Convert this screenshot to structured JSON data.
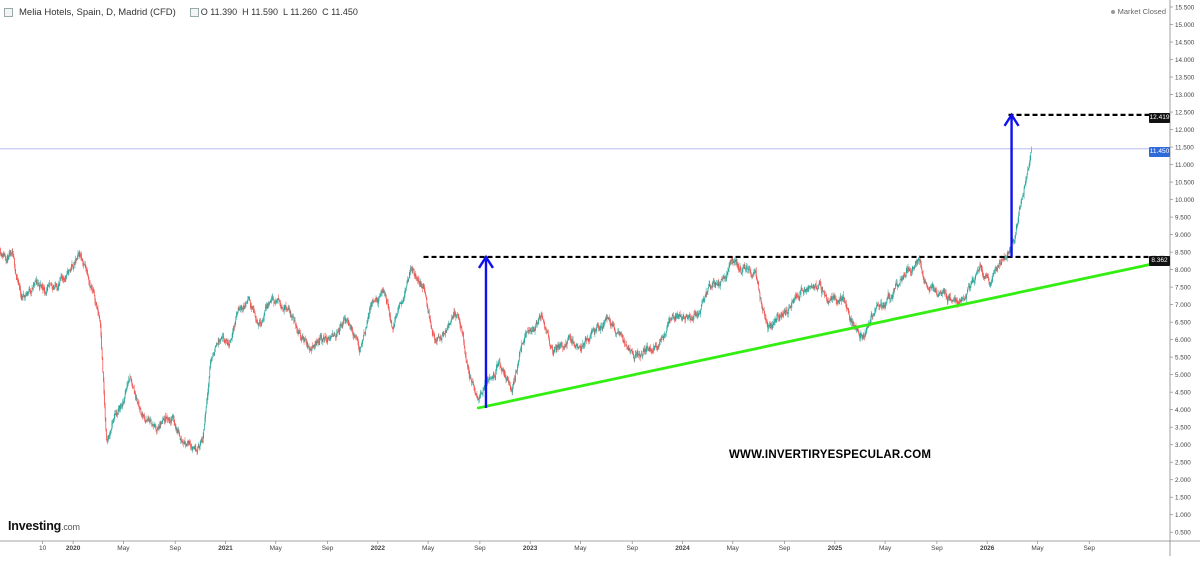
{
  "header": {
    "title": "Melia Hotels, Spain, D, Madrid (CFD)",
    "open": "O 11.390",
    "high": "H 11.590",
    "low": "L 11.260",
    "close": "C 11.450"
  },
  "status": "Market Closed",
  "logo": {
    "brand": "Investing",
    "suffix": ".com"
  },
  "watermark": "WWW.INVERTIRYESPECULAR.COM",
  "price_tags": {
    "target": "12.419",
    "current": "11.450",
    "breakout": "8.362"
  },
  "colors": {
    "up": "#26a69a",
    "down": "#ef5350",
    "trend": "#33ee11",
    "arrow": "#1010ee",
    "resistance": "#000000",
    "current_line": "#aab4f0"
  },
  "chart_data": {
    "type": "candlestick",
    "title": "Melia Hotels, Spain, D, Madrid (CFD)",
    "y_ticks": [
      "0.500",
      "1.000",
      "1.500",
      "2.000",
      "2.500",
      "3.000",
      "3.500",
      "4.000",
      "4.500",
      "5.000",
      "5.500",
      "6.000",
      "6.500",
      "7.000",
      "7.500",
      "8.000",
      "8.500",
      "9.000",
      "9.500",
      "10.000",
      "10.500",
      "11.000",
      "11.500",
      "12.000",
      "12.500",
      "13.000",
      "13.500",
      "14.000",
      "14.500",
      "15.000",
      "15.500"
    ],
    "ylim": [
      0.25,
      15.7
    ],
    "x_ticks": [
      {
        "label": "10",
        "date": "2019.8"
      },
      {
        "label": "2020",
        "date": "2020.0"
      },
      {
        "label": "May",
        "date": "2020.33"
      },
      {
        "label": "Sep",
        "date": "2020.67"
      },
      {
        "label": "2021",
        "date": "2021.0"
      },
      {
        "label": "May",
        "date": "2021.33"
      },
      {
        "label": "Sep",
        "date": "2021.67"
      },
      {
        "label": "2022",
        "date": "2022.0"
      },
      {
        "label": "May",
        "date": "2022.33"
      },
      {
        "label": "Sep",
        "date": "2022.67"
      },
      {
        "label": "2023",
        "date": "2023.0"
      },
      {
        "label": "May",
        "date": "2023.33"
      },
      {
        "label": "Sep",
        "date": "2023.67"
      },
      {
        "label": "2024",
        "date": "2024.0"
      },
      {
        "label": "May",
        "date": "2024.33"
      },
      {
        "label": "Sep",
        "date": "2024.67"
      },
      {
        "label": "2025",
        "date": "2025.0"
      },
      {
        "label": "May",
        "date": "2025.33"
      },
      {
        "label": "Sep",
        "date": "2025.67"
      },
      {
        "label": "2026",
        "date": "2026.0"
      },
      {
        "label": "May",
        "date": "2026.33"
      },
      {
        "label": "Sep",
        "date": "2026.67"
      }
    ],
    "xlim": [
      2019.52,
      2027.2
    ],
    "price_path": [
      [
        2019.52,
        8.6
      ],
      [
        2019.6,
        8.3
      ],
      [
        2019.66,
        7.2
      ],
      [
        2019.75,
        7.6
      ],
      [
        2019.85,
        7.4
      ],
      [
        2019.95,
        7.8
      ],
      [
        2020.05,
        8.4
      ],
      [
        2020.1,
        7.9
      ],
      [
        2020.18,
        6.5
      ],
      [
        2020.22,
        2.9
      ],
      [
        2020.27,
        3.8
      ],
      [
        2020.33,
        4.2
      ],
      [
        2020.37,
        4.9
      ],
      [
        2020.45,
        3.9
      ],
      [
        2020.55,
        3.4
      ],
      [
        2020.65,
        3.8
      ],
      [
        2020.72,
        3.1
      ],
      [
        2020.8,
        3.0
      ],
      [
        2020.85,
        3.1
      ],
      [
        2020.9,
        5.4
      ],
      [
        2020.95,
        6.0
      ],
      [
        2021.02,
        5.8
      ],
      [
        2021.08,
        6.8
      ],
      [
        2021.15,
        7.1
      ],
      [
        2021.22,
        6.5
      ],
      [
        2021.3,
        7.1
      ],
      [
        2021.4,
        7.0
      ],
      [
        2021.48,
        6.3
      ],
      [
        2021.55,
        5.7
      ],
      [
        2021.62,
        6.1
      ],
      [
        2021.7,
        6.0
      ],
      [
        2021.8,
        6.6
      ],
      [
        2021.88,
        5.7
      ],
      [
        2021.95,
        6.9
      ],
      [
        2022.05,
        7.3
      ],
      [
        2022.1,
        6.3
      ],
      [
        2022.18,
        7.4
      ],
      [
        2022.23,
        8.0
      ],
      [
        2022.3,
        7.5
      ],
      [
        2022.38,
        6.0
      ],
      [
        2022.45,
        6.2
      ],
      [
        2022.52,
        6.8
      ],
      [
        2022.6,
        5.0
      ],
      [
        2022.66,
        4.2
      ],
      [
        2022.72,
        4.9
      ],
      [
        2022.8,
        5.3
      ],
      [
        2022.88,
        4.6
      ],
      [
        2022.95,
        5.9
      ],
      [
        2023.0,
        6.3
      ],
      [
        2023.08,
        6.6
      ],
      [
        2023.16,
        5.7
      ],
      [
        2023.25,
        6.0
      ],
      [
        2023.33,
        5.8
      ],
      [
        2023.42,
        6.2
      ],
      [
        2023.5,
        6.6
      ],
      [
        2023.6,
        6.1
      ],
      [
        2023.68,
        5.5
      ],
      [
        2023.75,
        5.7
      ],
      [
        2023.84,
        5.9
      ],
      [
        2023.92,
        6.5
      ],
      [
        2024.0,
        6.7
      ],
      [
        2024.1,
        6.7
      ],
      [
        2024.18,
        7.4
      ],
      [
        2024.27,
        7.8
      ],
      [
        2024.33,
        8.2
      ],
      [
        2024.4,
        8.0
      ],
      [
        2024.48,
        7.8
      ],
      [
        2024.56,
        6.2
      ],
      [
        2024.62,
        6.6
      ],
      [
        2024.72,
        7.0
      ],
      [
        2024.8,
        7.4
      ],
      [
        2024.9,
        7.6
      ],
      [
        2024.96,
        7.0
      ],
      [
        2025.05,
        7.2
      ],
      [
        2025.12,
        6.4
      ],
      [
        2025.18,
        6.1
      ],
      [
        2025.25,
        6.8
      ],
      [
        2025.33,
        7.0
      ],
      [
        2025.4,
        7.5
      ],
      [
        2025.48,
        8.0
      ],
      [
        2025.55,
        8.2
      ],
      [
        2025.6,
        7.7
      ],
      [
        2025.68,
        7.3
      ],
      [
        2025.75,
        7.2
      ],
      [
        2025.82,
        7.0
      ],
      [
        2025.9,
        7.6
      ],
      [
        2025.96,
        8.1
      ],
      [
        2026.02,
        7.5
      ],
      [
        2026.08,
        8.0
      ],
      [
        2026.12,
        8.3
      ],
      [
        2026.18,
        8.9
      ],
      [
        2026.22,
        9.9
      ],
      [
        2026.27,
        10.9
      ],
      [
        2026.29,
        11.45
      ]
    ],
    "annotations": {
      "support_trendline": {
        "from": [
          2022.66,
          4.05
        ],
        "to": [
          2027.18,
          8.25
        ]
      },
      "resistance_line": {
        "y": 8.362,
        "from": 2022.3,
        "to": 2027.18
      },
      "target_line": {
        "y": 12.419,
        "from": 2026.14,
        "to": 2027.18
      },
      "current_price_line": {
        "y": 11.45
      },
      "arrow_1": {
        "x": 2022.71,
        "from": 4.05,
        "to": 8.362
      },
      "arrow_2": {
        "x": 2026.16,
        "from": 8.362,
        "to": 12.419
      }
    }
  }
}
